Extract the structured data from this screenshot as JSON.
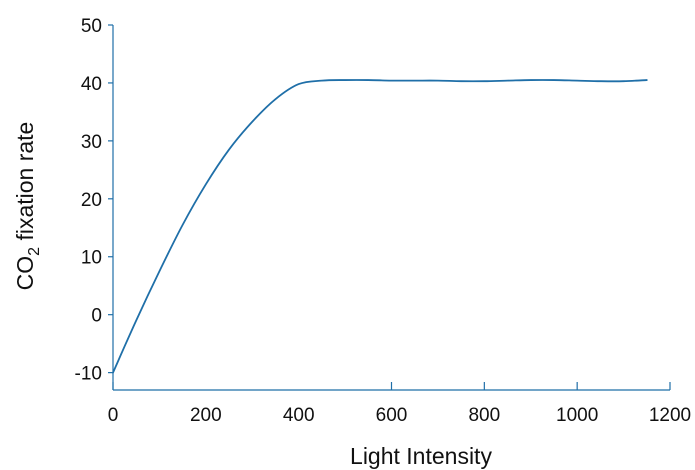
{
  "chart_data": {
    "type": "line",
    "title": "",
    "xlabel": "Light Intensity",
    "ylabel": {
      "main": "CO",
      "subscript": "2",
      "rest": " fixation rate"
    },
    "xlim": [
      0,
      1200
    ],
    "ylim": [
      -13,
      50
    ],
    "x_ticks": [
      0,
      200,
      400,
      600,
      800,
      1000,
      1200
    ],
    "x_tick_marks": [
      0,
      600,
      800,
      1000,
      1200
    ],
    "y_ticks": [
      -10,
      0,
      10,
      20,
      30,
      40,
      50
    ],
    "grid": false,
    "series": [
      {
        "x": [
          0,
          50,
          100,
          150,
          200,
          250,
          300,
          350,
          400,
          450,
          500,
          550,
          600,
          650,
          700,
          750,
          800,
          850,
          900,
          950,
          1000,
          1050,
          1100,
          1150
        ],
        "y": [
          -10,
          -1,
          7.5,
          15.5,
          22.5,
          28.5,
          33.3,
          37.2,
          39.8,
          40.4,
          40.5,
          40.5,
          40.4,
          40.4,
          40.4,
          40.3,
          40.3,
          40.4,
          40.5,
          40.5,
          40.4,
          40.3,
          40.3,
          40.5
        ],
        "color": "#1f6fa8"
      }
    ]
  }
}
